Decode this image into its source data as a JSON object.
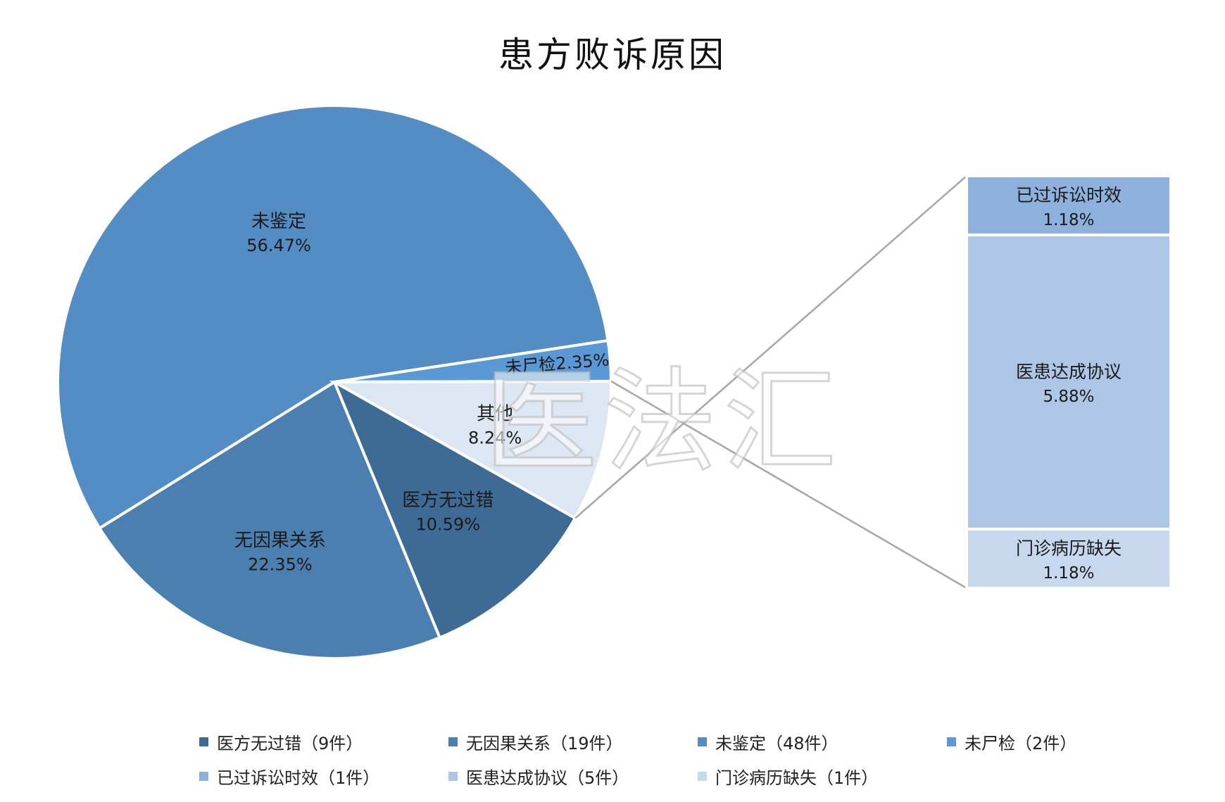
{
  "title": "患方败诉原因",
  "watermark": "医法汇",
  "chart_data": {
    "type": "bar-of-pie",
    "title": "患方败诉原因",
    "pie": [
      {
        "name": "医方无过错",
        "count": 9,
        "percent": "10.59%",
        "value": 10.59,
        "color": "#3e6b96"
      },
      {
        "name": "无因果关系",
        "count": 19,
        "percent": "22.35%",
        "value": 22.35,
        "color": "#4a7fb0"
      },
      {
        "name": "未鉴定",
        "count": 48,
        "percent": "56.47%",
        "value": 56.47,
        "color": "#538dc4"
      },
      {
        "name": "未尸检",
        "count": 2,
        "percent": "2.35%",
        "value": 2.35,
        "color": "#5a99d6"
      },
      {
        "name": "其他",
        "percent": "8.24%",
        "value": 8.24,
        "color": "#dde6f3"
      }
    ],
    "bar": [
      {
        "name": "已过诉讼时效",
        "count": 1,
        "percent": "1.18%",
        "value": 1.18,
        "color": "#8db0dc"
      },
      {
        "name": "医患达成协议",
        "count": 5,
        "percent": "5.88%",
        "value": 5.88,
        "color": "#adc6e6"
      },
      {
        "name": "门诊病历缺失",
        "count": 1,
        "percent": "1.18%",
        "value": 1.18,
        "color": "#c7d7ee"
      }
    ],
    "legend": [
      {
        "label": "医方无过错（9件）",
        "color": "#3e6b96"
      },
      {
        "label": "无因果关系（19件）",
        "color": "#4a7fb0"
      },
      {
        "label": "未鉴定（48件）",
        "color": "#538dc4"
      },
      {
        "label": "未尸检（2件）",
        "color": "#5a99d6"
      },
      {
        "label": "已过诉讼时效（1件）",
        "color": "#8db0dc"
      },
      {
        "label": "医患达成协议（5件）",
        "color": "#adc6e6"
      },
      {
        "label": "门诊病历缺失（1件）",
        "color": "#c7d7ee"
      }
    ],
    "legend_position": "bottom"
  }
}
